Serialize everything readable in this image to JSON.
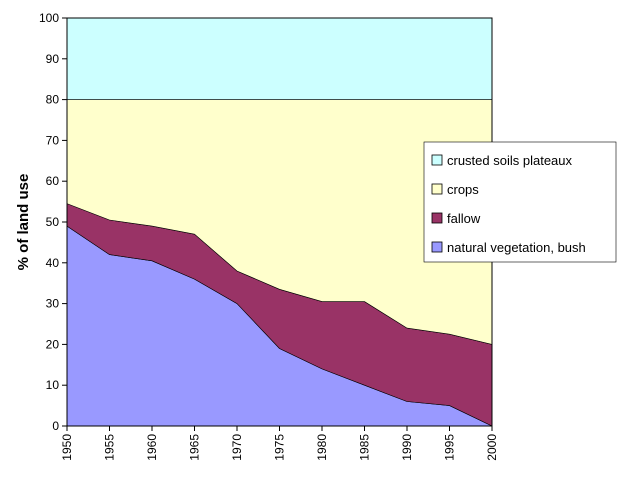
{
  "chart_data": {
    "type": "area",
    "stacked": true,
    "title": "",
    "xlabel": "",
    "ylabel": "% of land use",
    "ylim": [
      0,
      100
    ],
    "x": [
      1950,
      1955,
      1960,
      1965,
      1970,
      1975,
      1980,
      1985,
      1990,
      1995,
      2000
    ],
    "yticks": [
      0,
      10,
      20,
      30,
      40,
      50,
      60,
      70,
      80,
      90,
      100
    ],
    "grid": false,
    "legend_position": "right",
    "series": [
      {
        "name": "natural vegetation, bush",
        "color": "#9999ff",
        "values": [
          49,
          42,
          40.5,
          36,
          30,
          19,
          14,
          10,
          6,
          5,
          0
        ]
      },
      {
        "name": "fallow",
        "color": "#993366",
        "values": [
          5.5,
          8.5,
          8.5,
          11,
          8,
          14.5,
          16.5,
          20.5,
          18,
          17.5,
          20
        ]
      },
      {
        "name": "crops",
        "color": "#ffffcc",
        "values": [
          25.5,
          29.5,
          31,
          33,
          42,
          46.5,
          49.5,
          49.5,
          56,
          57.5,
          60
        ]
      },
      {
        "name": "crusted soils plateaux",
        "color": "#ccffff",
        "values": [
          20,
          20,
          20,
          20,
          20,
          20,
          20,
          20,
          20,
          20,
          20
        ]
      }
    ],
    "legend_order": [
      "crusted soils plateaux",
      "crops",
      "fallow",
      "natural vegetation, bush"
    ]
  }
}
